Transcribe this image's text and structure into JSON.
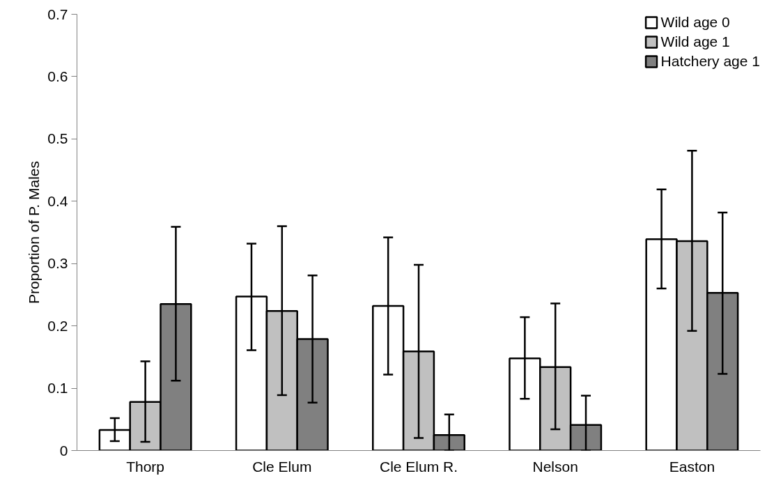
{
  "chart_data": {
    "type": "bar",
    "ylabel": "Proportion of P. Males",
    "categories": [
      "Thorp",
      "Cle Elum",
      "Cle Elum R.",
      "Nelson",
      "Easton"
    ],
    "series": [
      {
        "name": "Wild age 0",
        "color": "#ffffff",
        "values": [
          0.033,
          0.247,
          0.232,
          0.148,
          0.339
        ],
        "errors": [
          [
            0.015,
            0.052
          ],
          [
            0.161,
            0.332
          ],
          [
            0.122,
            0.342
          ],
          [
            0.083,
            0.214
          ],
          [
            0.26,
            0.419
          ]
        ]
      },
      {
        "name": "Wild age 1",
        "color": "#c0c0c0",
        "values": [
          0.078,
          0.224,
          0.159,
          0.134,
          0.336
        ],
        "errors": [
          [
            0.014,
            0.143
          ],
          [
            0.089,
            0.36
          ],
          [
            0.02,
            0.298
          ],
          [
            0.034,
            0.236
          ],
          [
            0.192,
            0.481
          ]
        ]
      },
      {
        "name": "Hatchery age 1",
        "color": "#808080",
        "values": [
          0.235,
          0.179,
          0.025,
          0.041,
          0.253
        ],
        "errors": [
          [
            0.112,
            0.359
          ],
          [
            0.077,
            0.281
          ],
          [
            0.0,
            0.058
          ],
          [
            0.0,
            0.088
          ],
          [
            0.123,
            0.382
          ]
        ]
      }
    ],
    "ylim": [
      0,
      0.7
    ],
    "yticks": [
      0,
      0.1,
      0.2,
      0.3,
      0.4,
      0.5,
      0.6,
      0.7
    ],
    "grid": false,
    "legend": "top right"
  }
}
